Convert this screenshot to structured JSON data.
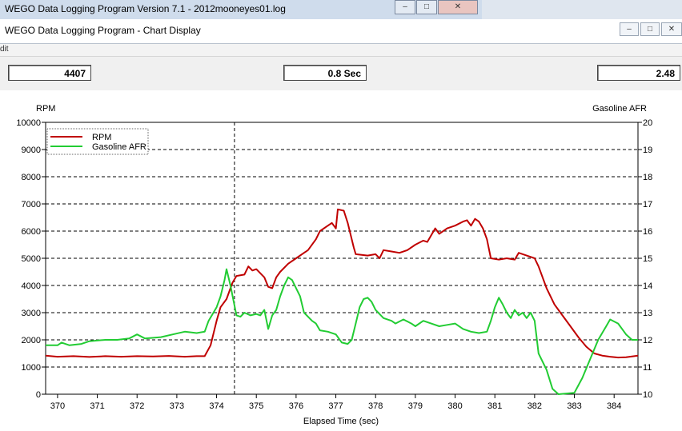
{
  "window": {
    "main_title": "WEGO Data Logging Program Version 7.1 - 2012mooneyes01.log",
    "chart_title": "WEGO Data Logging Program - Chart Display",
    "menu_fragment": "dit"
  },
  "controls": {
    "minimize": "–",
    "maximize": "□",
    "close": "✕"
  },
  "readouts": {
    "left": "4407",
    "middle": "0.8 Sec",
    "right": "2.48"
  },
  "chart_data": {
    "type": "line",
    "title": "",
    "xlabel": "Elapsed Time (sec)",
    "ylabel_left": "RPM",
    "ylabel_right": "Gasoline AFR",
    "xlim": [
      369.7,
      384.6
    ],
    "ylim_left": [
      0,
      10000
    ],
    "ylim_right": [
      10,
      20
    ],
    "x_ticks": [
      370,
      371,
      372,
      373,
      374,
      375,
      376,
      377,
      378,
      379,
      380,
      381,
      382,
      383,
      384
    ],
    "y_ticks_left": [
      0,
      1000,
      2000,
      3000,
      4000,
      5000,
      6000,
      7000,
      8000,
      9000,
      10000
    ],
    "y_ticks_right": [
      10,
      11,
      12,
      13,
      14,
      15,
      16,
      17,
      18,
      19,
      20
    ],
    "cursor_x": 374.45,
    "grid": true,
    "legend_position": "top-left",
    "series": [
      {
        "name": "RPM",
        "axis": "left",
        "color": "#c00000",
        "points": [
          [
            369.7,
            1420
          ],
          [
            370.0,
            1380
          ],
          [
            370.4,
            1400
          ],
          [
            370.8,
            1370
          ],
          [
            371.2,
            1400
          ],
          [
            371.6,
            1380
          ],
          [
            372.0,
            1400
          ],
          [
            372.4,
            1390
          ],
          [
            372.8,
            1410
          ],
          [
            373.2,
            1380
          ],
          [
            373.5,
            1400
          ],
          [
            373.7,
            1400
          ],
          [
            373.85,
            1800
          ],
          [
            374.0,
            2700
          ],
          [
            374.1,
            3200
          ],
          [
            374.25,
            3500
          ],
          [
            374.4,
            4100
          ],
          [
            374.5,
            4350
          ],
          [
            374.7,
            4400
          ],
          [
            374.8,
            4700
          ],
          [
            374.9,
            4550
          ],
          [
            375.0,
            4600
          ],
          [
            375.2,
            4300
          ],
          [
            375.3,
            3950
          ],
          [
            375.4,
            3900
          ],
          [
            375.5,
            4300
          ],
          [
            375.6,
            4500
          ],
          [
            375.8,
            4800
          ],
          [
            376.0,
            5000
          ],
          [
            376.3,
            5300
          ],
          [
            376.5,
            5700
          ],
          [
            376.6,
            6000
          ],
          [
            376.8,
            6200
          ],
          [
            376.9,
            6300
          ],
          [
            377.0,
            6100
          ],
          [
            377.05,
            6800
          ],
          [
            377.2,
            6750
          ],
          [
            377.3,
            6300
          ],
          [
            377.45,
            5400
          ],
          [
            377.5,
            5150
          ],
          [
            377.8,
            5100
          ],
          [
            378.0,
            5150
          ],
          [
            378.1,
            5000
          ],
          [
            378.2,
            5300
          ],
          [
            378.4,
            5250
          ],
          [
            378.6,
            5200
          ],
          [
            378.8,
            5300
          ],
          [
            379.0,
            5500
          ],
          [
            379.2,
            5650
          ],
          [
            379.3,
            5600
          ],
          [
            379.5,
            6100
          ],
          [
            379.6,
            5900
          ],
          [
            379.8,
            6100
          ],
          [
            380.0,
            6200
          ],
          [
            380.2,
            6350
          ],
          [
            380.3,
            6400
          ],
          [
            380.4,
            6200
          ],
          [
            380.5,
            6450
          ],
          [
            380.6,
            6350
          ],
          [
            380.7,
            6100
          ],
          [
            380.8,
            5700
          ],
          [
            380.9,
            5000
          ],
          [
            381.1,
            4950
          ],
          [
            381.3,
            5000
          ],
          [
            381.5,
            4950
          ],
          [
            381.6,
            5200
          ],
          [
            381.8,
            5100
          ],
          [
            382.0,
            5000
          ],
          [
            382.1,
            4700
          ],
          [
            382.3,
            3900
          ],
          [
            382.5,
            3300
          ],
          [
            382.7,
            2900
          ],
          [
            382.9,
            2500
          ],
          [
            383.1,
            2100
          ],
          [
            383.3,
            1750
          ],
          [
            383.5,
            1500
          ],
          [
            383.7,
            1420
          ],
          [
            383.9,
            1380
          ],
          [
            384.1,
            1350
          ],
          [
            384.3,
            1360
          ],
          [
            384.6,
            1420
          ]
        ]
      },
      {
        "name": "Gasoline AFR",
        "axis": "right",
        "color": "#22cc33",
        "points": [
          [
            369.7,
            11.8
          ],
          [
            370.0,
            11.8
          ],
          [
            370.1,
            11.9
          ],
          [
            370.3,
            11.8
          ],
          [
            370.6,
            11.85
          ],
          [
            370.8,
            11.95
          ],
          [
            371.2,
            12.0
          ],
          [
            371.5,
            12.0
          ],
          [
            371.8,
            12.05
          ],
          [
            372.0,
            12.2
          ],
          [
            372.2,
            12.05
          ],
          [
            372.6,
            12.1
          ],
          [
            372.9,
            12.2
          ],
          [
            373.2,
            12.3
          ],
          [
            373.5,
            12.25
          ],
          [
            373.7,
            12.3
          ],
          [
            373.8,
            12.7
          ],
          [
            374.0,
            13.2
          ],
          [
            374.1,
            13.6
          ],
          [
            374.2,
            14.2
          ],
          [
            374.25,
            14.6
          ],
          [
            374.35,
            14.0
          ],
          [
            374.5,
            12.9
          ],
          [
            374.6,
            12.85
          ],
          [
            374.7,
            13.0
          ],
          [
            374.85,
            12.9
          ],
          [
            375.0,
            12.95
          ],
          [
            375.1,
            12.9
          ],
          [
            375.2,
            13.1
          ],
          [
            375.3,
            12.4
          ],
          [
            375.4,
            12.9
          ],
          [
            375.5,
            13.1
          ],
          [
            375.6,
            13.6
          ],
          [
            375.7,
            14.0
          ],
          [
            375.8,
            14.3
          ],
          [
            375.9,
            14.2
          ],
          [
            376.0,
            13.9
          ],
          [
            376.1,
            13.6
          ],
          [
            376.2,
            13.0
          ],
          [
            376.4,
            12.7
          ],
          [
            376.5,
            12.6
          ],
          [
            376.6,
            12.35
          ],
          [
            376.8,
            12.3
          ],
          [
            377.0,
            12.2
          ],
          [
            377.15,
            11.9
          ],
          [
            377.3,
            11.85
          ],
          [
            377.4,
            12.0
          ],
          [
            377.5,
            12.6
          ],
          [
            377.6,
            13.2
          ],
          [
            377.7,
            13.5
          ],
          [
            377.8,
            13.55
          ],
          [
            377.9,
            13.4
          ],
          [
            378.0,
            13.1
          ],
          [
            378.2,
            12.8
          ],
          [
            378.4,
            12.7
          ],
          [
            378.5,
            12.6
          ],
          [
            378.7,
            12.75
          ],
          [
            378.9,
            12.6
          ],
          [
            379.0,
            12.5
          ],
          [
            379.2,
            12.7
          ],
          [
            379.4,
            12.6
          ],
          [
            379.6,
            12.5
          ],
          [
            379.8,
            12.55
          ],
          [
            380.0,
            12.6
          ],
          [
            380.2,
            12.4
          ],
          [
            380.4,
            12.3
          ],
          [
            380.6,
            12.25
          ],
          [
            380.8,
            12.3
          ],
          [
            380.9,
            12.7
          ],
          [
            381.0,
            13.2
          ],
          [
            381.1,
            13.55
          ],
          [
            381.2,
            13.3
          ],
          [
            381.3,
            13.0
          ],
          [
            381.4,
            12.8
          ],
          [
            381.5,
            13.1
          ],
          [
            381.6,
            12.9
          ],
          [
            381.7,
            13.0
          ],
          [
            381.8,
            12.8
          ],
          [
            381.9,
            13.0
          ],
          [
            382.0,
            12.7
          ],
          [
            382.1,
            11.5
          ],
          [
            382.3,
            10.9
          ],
          [
            382.45,
            10.2
          ],
          [
            382.6,
            10.0
          ],
          [
            383.0,
            10.05
          ],
          [
            383.2,
            10.6
          ],
          [
            383.4,
            11.3
          ],
          [
            383.6,
            12.0
          ],
          [
            383.8,
            12.5
          ],
          [
            383.9,
            12.75
          ],
          [
            384.1,
            12.6
          ],
          [
            384.3,
            12.2
          ],
          [
            384.45,
            12.0
          ],
          [
            384.6,
            12.0
          ]
        ]
      }
    ]
  }
}
